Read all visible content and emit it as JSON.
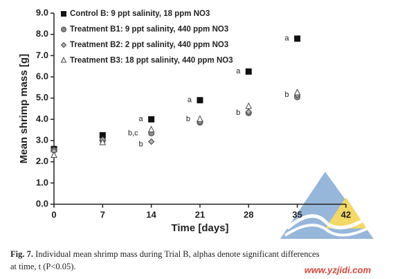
{
  "chart_data": {
    "type": "scatter",
    "x_label": "Time [days]",
    "y_label": "Mean shrimp mass [g]",
    "xlim": [
      0,
      42
    ],
    "xticks": [
      0,
      7,
      14,
      21,
      28,
      35,
      42
    ],
    "ylim": [
      0,
      9
    ],
    "yticks": [
      {
        "value": 0,
        "label": "0.0"
      },
      {
        "value": 1,
        "label": "1.0"
      },
      {
        "value": 2,
        "label": "2.0"
      },
      {
        "value": 3,
        "label": "3.0"
      },
      {
        "value": 4,
        "label": "4.0"
      },
      {
        "value": 5,
        "label": "5.0"
      },
      {
        "value": 6,
        "label": "6.0"
      },
      {
        "value": 7,
        "label": "7.0"
      },
      {
        "value": 8,
        "label": "8.0"
      },
      {
        "value": 9,
        "label": "9.0"
      }
    ],
    "x": [
      0,
      7,
      14,
      21,
      28,
      35
    ],
    "series": [
      {
        "name": "Control B: 9 ppt salinity, 18 ppm NO3",
        "marker": "square",
        "color": "#111111",
        "values": [
          2.6,
          3.25,
          4.0,
          4.9,
          6.25,
          7.8
        ]
      },
      {
        "name": "Treatment B1: 9 ppt salinity, 440 ppm NO3",
        "marker": "circle",
        "color": "#8c8c8c",
        "values": [
          2.55,
          3.0,
          3.35,
          3.85,
          4.3,
          5.05
        ]
      },
      {
        "name": "Treatment B2: 2 ppt salinity, 440 ppm NO3",
        "marker": "diamond",
        "color": "#b4b4b4",
        "values": [
          2.5,
          3.05,
          2.95,
          3.9,
          4.35,
          5.15
        ]
      },
      {
        "name": "Treatment B3: 18 ppt salinity, 440 ppm NO3",
        "marker": "triangle",
        "color": "#ffffff",
        "values": [
          2.3,
          2.9,
          3.5,
          4.0,
          4.6,
          5.25
        ]
      }
    ],
    "annotations": [
      "a",
      "b,c",
      "b",
      "a",
      "b",
      "a",
      "b",
      "a",
      "b"
    ]
  },
  "caption": {
    "label": "Fig. 7.",
    "text": "Individual mean shrimp mass during Trial B, alphas denote significant differences",
    "text2": "at time, t (P<0.05)."
  },
  "watermark": {
    "url": "www.yzjidi.com"
  }
}
